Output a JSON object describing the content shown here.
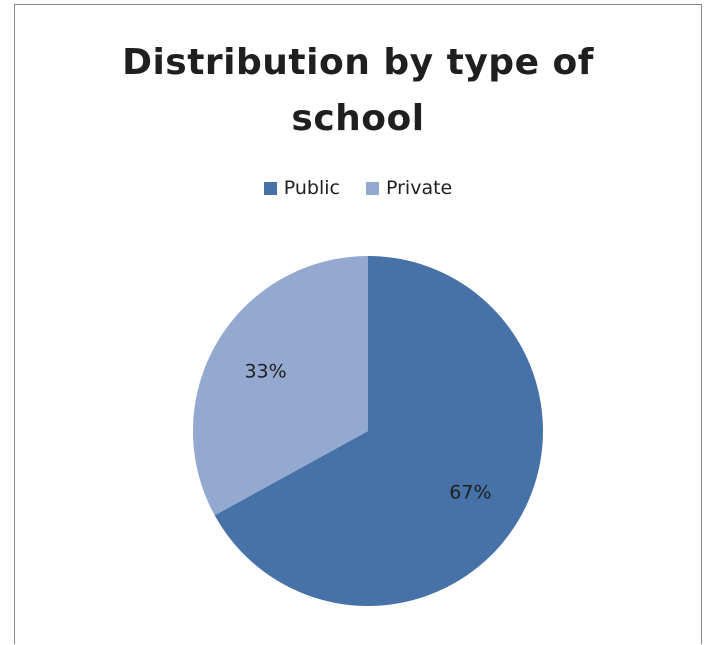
{
  "chart_data": {
    "type": "pie",
    "title_lines": [
      "Distribution by type of",
      "school"
    ],
    "categories": [
      "Public",
      "Private"
    ],
    "values": [
      67,
      33
    ],
    "labels": [
      "67%",
      "33%"
    ],
    "colors": [
      "#4672a8",
      "#93a9d0"
    ],
    "legend_position": "top",
    "start_angle": "top, clockwise"
  }
}
